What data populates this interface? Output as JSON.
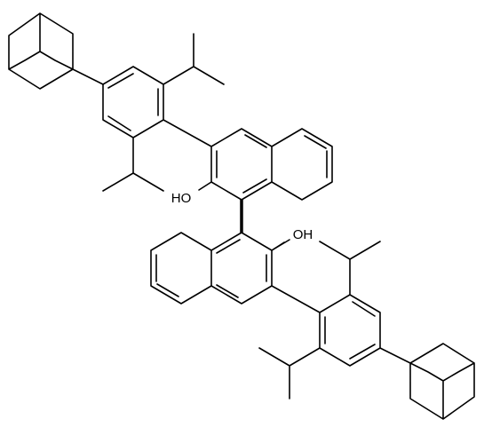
{
  "labels": {
    "upper_hydroxyl": "HO",
    "lower_hydroxyl": "OH"
  }
}
